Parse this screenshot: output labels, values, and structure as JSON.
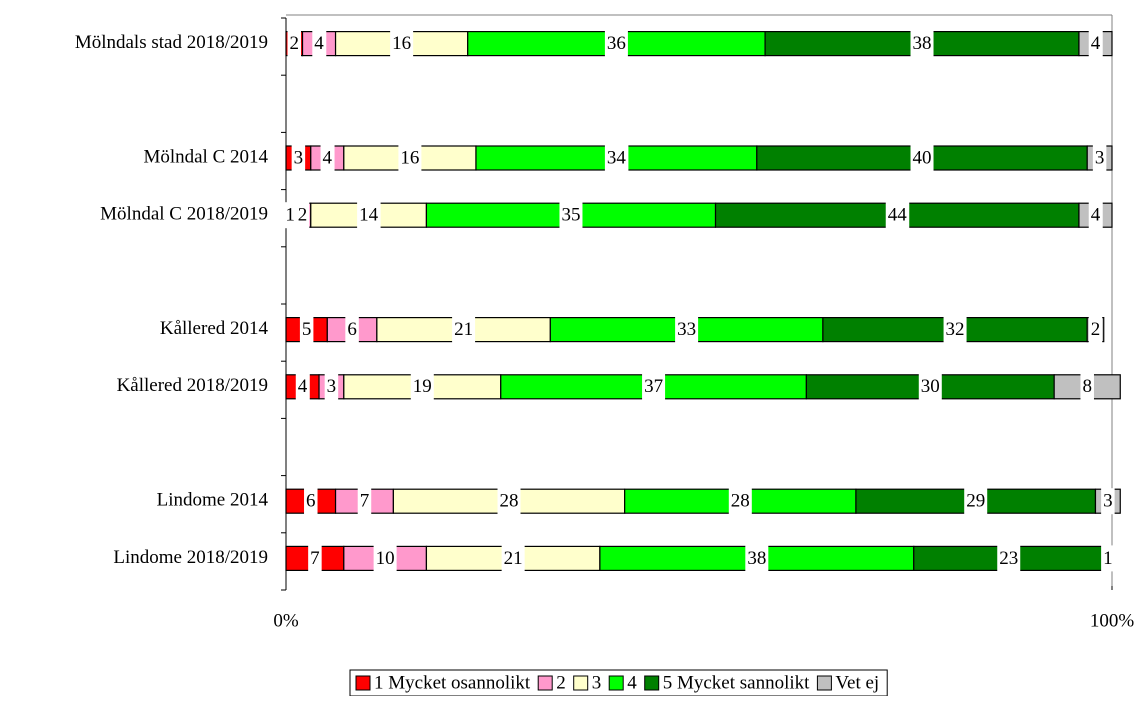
{
  "chart_data": {
    "type": "stacked_bar_horizontal",
    "categories": [
      "Mölndals stad 2018/2019",
      null,
      "Mölndal C 2014",
      "Mölndal C 2018/2019",
      null,
      "Kållered 2014",
      "Kållered 2018/2019",
      null,
      "Lindome 2014",
      "Lindome 2018/2019"
    ],
    "series": [
      {
        "name": "1 Mycket osannolikt",
        "color": "#ff0000",
        "values": [
          2,
          null,
          3,
          1,
          null,
          5,
          4,
          null,
          6,
          7
        ]
      },
      {
        "name": "2",
        "color": "#ff99cc",
        "values": [
          4,
          null,
          4,
          2,
          null,
          6,
          3,
          null,
          7,
          10
        ]
      },
      {
        "name": "3",
        "color": "#ffffcc",
        "values": [
          16,
          null,
          16,
          14,
          null,
          21,
          19,
          null,
          28,
          21
        ]
      },
      {
        "name": "4",
        "color": "#00ff00",
        "values": [
          36,
          null,
          34,
          35,
          null,
          33,
          37,
          null,
          28,
          38
        ]
      },
      {
        "name": "5 Mycket sannolikt",
        "color": "#008000",
        "values": [
          38,
          null,
          40,
          44,
          null,
          32,
          30,
          null,
          29,
          23
        ]
      },
      {
        "name": "Vet ej",
        "color": "#c0c0c0",
        "values": [
          4,
          null,
          3,
          4,
          null,
          2,
          8,
          null,
          3,
          1
        ]
      }
    ],
    "xlim": [
      0,
      100
    ],
    "xticks": [
      {
        "value": 0,
        "label": "0%"
      },
      {
        "value": 100,
        "label": "100%"
      }
    ],
    "legend": "bottom"
  }
}
